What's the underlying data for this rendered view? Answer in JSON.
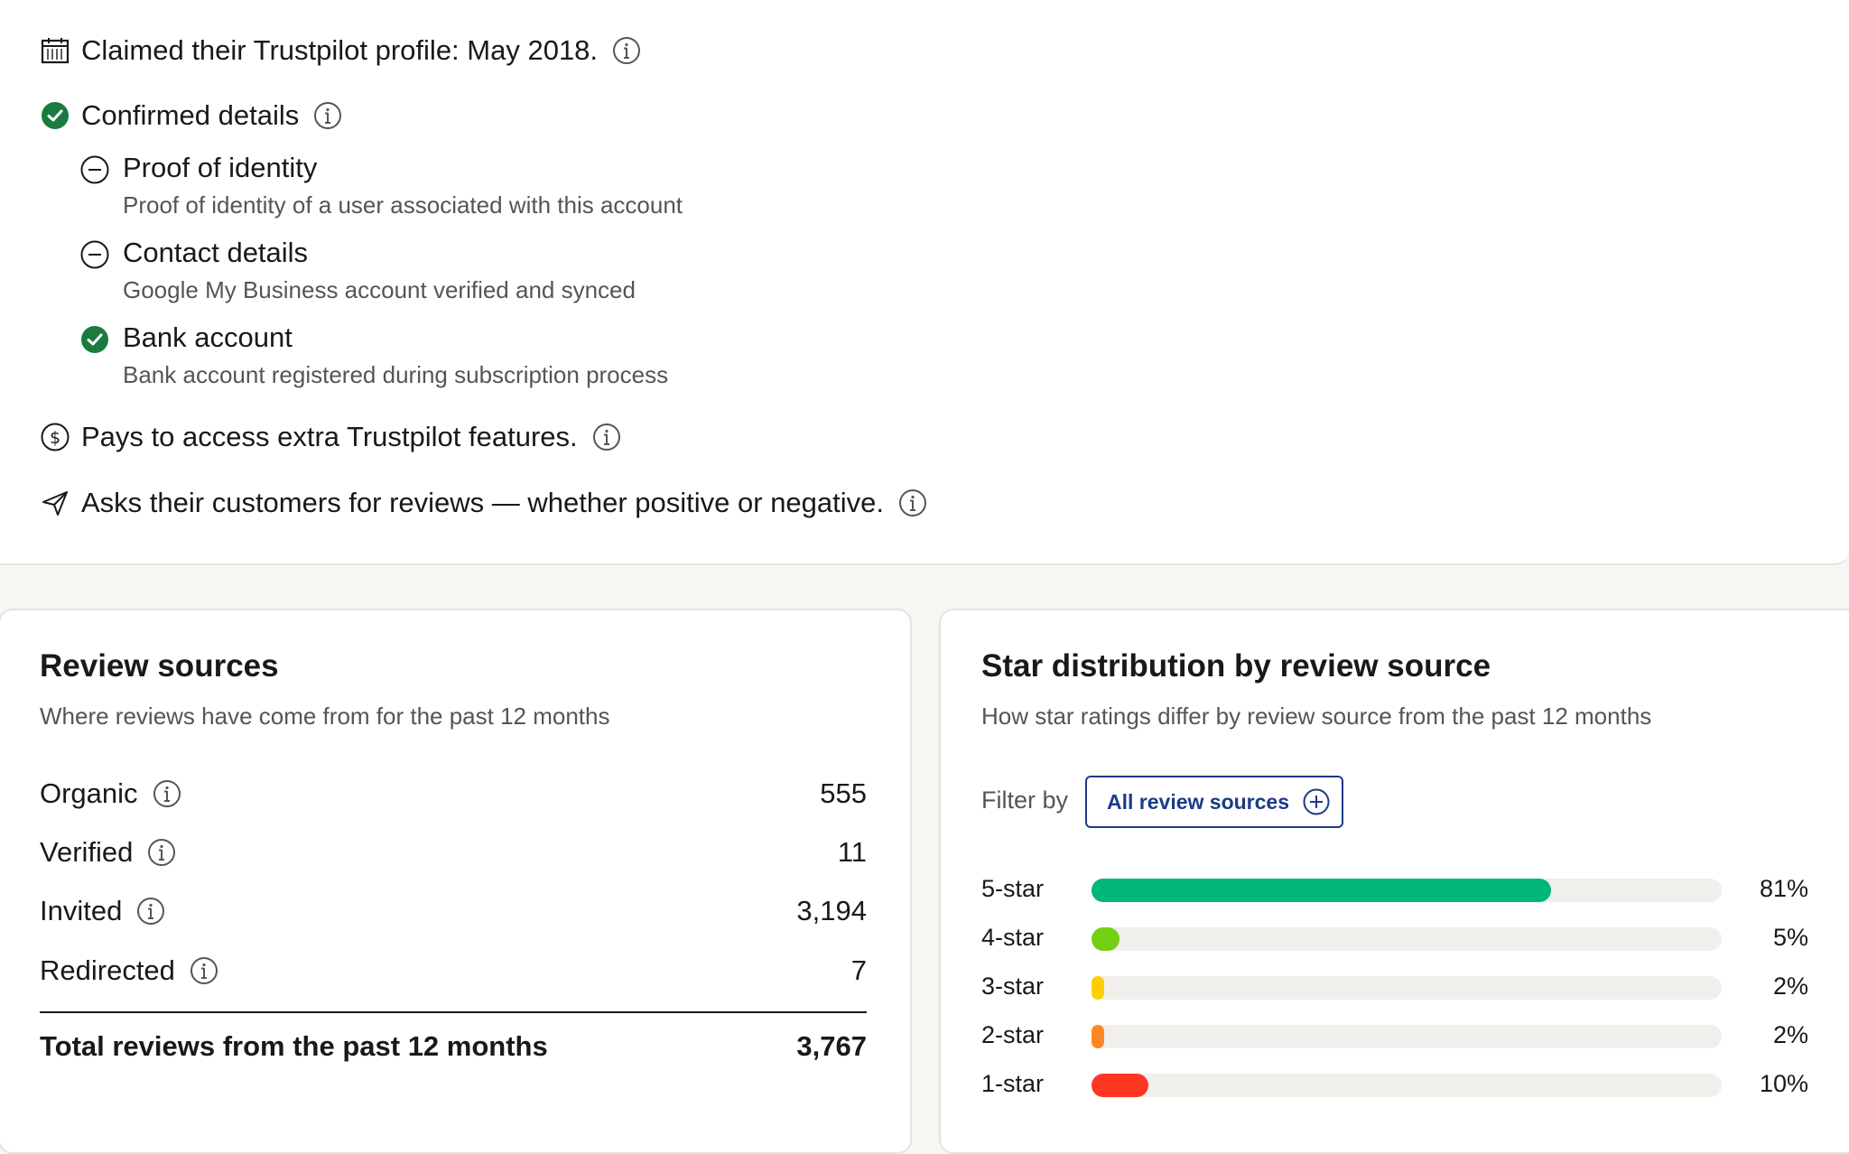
{
  "profile": {
    "claimed_text": "Claimed their Trustpilot profile: May 2018.",
    "confirmed_title": "Confirmed details",
    "details": [
      {
        "title": "Proof of identity",
        "desc": "Proof of identity of a user associated with this account",
        "status": "minus-circle-icon"
      },
      {
        "title": "Contact details",
        "desc": "Google My Business account verified and synced",
        "status": "minus-circle-icon"
      },
      {
        "title": "Bank account",
        "desc": "Bank account registered during subscription process",
        "status": "check-circle-icon"
      }
    ],
    "pays_text": "Pays to access extra Trustpilot features.",
    "asks_text": "Asks their customers for reviews — whether positive or negative."
  },
  "review_sources": {
    "title": "Review sources",
    "subtitle": "Where reviews have come from for the past 12 months",
    "rows": [
      {
        "label": "Organic",
        "value": "555"
      },
      {
        "label": "Verified",
        "value": "11"
      },
      {
        "label": "Invited",
        "value": "3,194"
      },
      {
        "label": "Redirected",
        "value": "7"
      }
    ],
    "total_label": "Total reviews from the past 12 months",
    "total_value": "3,767"
  },
  "star_distribution": {
    "title": "Star distribution by review source",
    "subtitle": "How star ratings differ by review source from the past 12 months",
    "filter_label": "Filter by",
    "filter_button": "All review sources",
    "rows": [
      {
        "label": "5-star",
        "pct": "81%",
        "value": 81,
        "color": "#00b67a"
      },
      {
        "label": "4-star",
        "pct": "5%",
        "value": 5,
        "color": "#73cf11"
      },
      {
        "label": "3-star",
        "pct": "2%",
        "value": 2,
        "color": "#ffce00"
      },
      {
        "label": "2-star",
        "pct": "2%",
        "value": 2,
        "color": "#ff8622"
      },
      {
        "label": "1-star",
        "pct": "10%",
        "value": 10,
        "color": "#ff3722"
      }
    ]
  },
  "colors": {
    "accent_blue": "#1c3a87",
    "check_green": "#1b7a3e"
  }
}
